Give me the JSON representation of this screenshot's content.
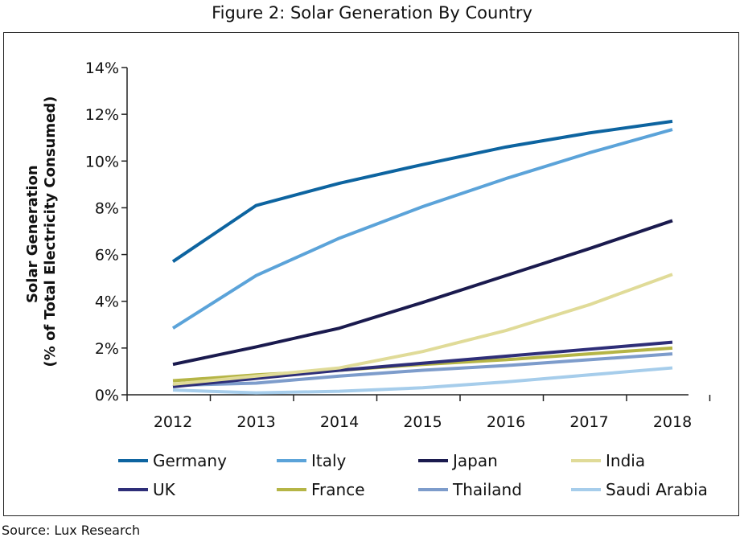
{
  "chart_data": {
    "type": "line",
    "title": "Figure 2: Solar Generation By Country",
    "ylabel_line1": "Solar Generation",
    "ylabel_line2": "(% of Total Electricity Consumed)",
    "xlabel": "",
    "categories": [
      "2012",
      "2013",
      "2014",
      "2015",
      "2016",
      "2017",
      "2018"
    ],
    "ylim": [
      0,
      14
    ],
    "yticks": [
      0,
      2,
      4,
      6,
      8,
      10,
      12,
      14
    ],
    "ytick_labels": [
      "0%",
      "2%",
      "4%",
      "6%",
      "8%",
      "10%",
      "12%",
      "14%"
    ],
    "grid": false,
    "legend_position": "bottom",
    "series": [
      {
        "name": "Germany",
        "color": "#0d64a0",
        "values": [
          5.7,
          8.1,
          9.05,
          9.85,
          10.6,
          11.2,
          11.7
        ]
      },
      {
        "name": "Italy",
        "color": "#5ba3d9",
        "values": [
          2.85,
          5.1,
          6.7,
          8.05,
          9.25,
          10.35,
          11.35
        ]
      },
      {
        "name": "Japan",
        "color": "#1a1a4e",
        "values": [
          1.3,
          2.05,
          2.85,
          3.95,
          5.1,
          6.25,
          7.45
        ]
      },
      {
        "name": "India",
        "color": "#e0db98",
        "values": [
          0.45,
          0.8,
          1.15,
          1.85,
          2.75,
          3.85,
          5.15
        ]
      },
      {
        "name": "UK",
        "color": "#2e2e78",
        "values": [
          0.35,
          0.7,
          1.05,
          1.35,
          1.65,
          1.95,
          2.25
        ]
      },
      {
        "name": "France",
        "color": "#b5b546",
        "values": [
          0.6,
          0.85,
          1.05,
          1.3,
          1.5,
          1.75,
          2.0
        ]
      },
      {
        "name": "Thailand",
        "color": "#7d9ccb",
        "values": [
          0.4,
          0.5,
          0.8,
          1.05,
          1.25,
          1.5,
          1.75
        ]
      },
      {
        "name": "Saudi Arabia",
        "color": "#a6cdeb",
        "values": [
          0.2,
          0.08,
          0.15,
          0.3,
          0.55,
          0.85,
          1.15
        ]
      }
    ]
  },
  "source_text": "Source: Lux Research"
}
